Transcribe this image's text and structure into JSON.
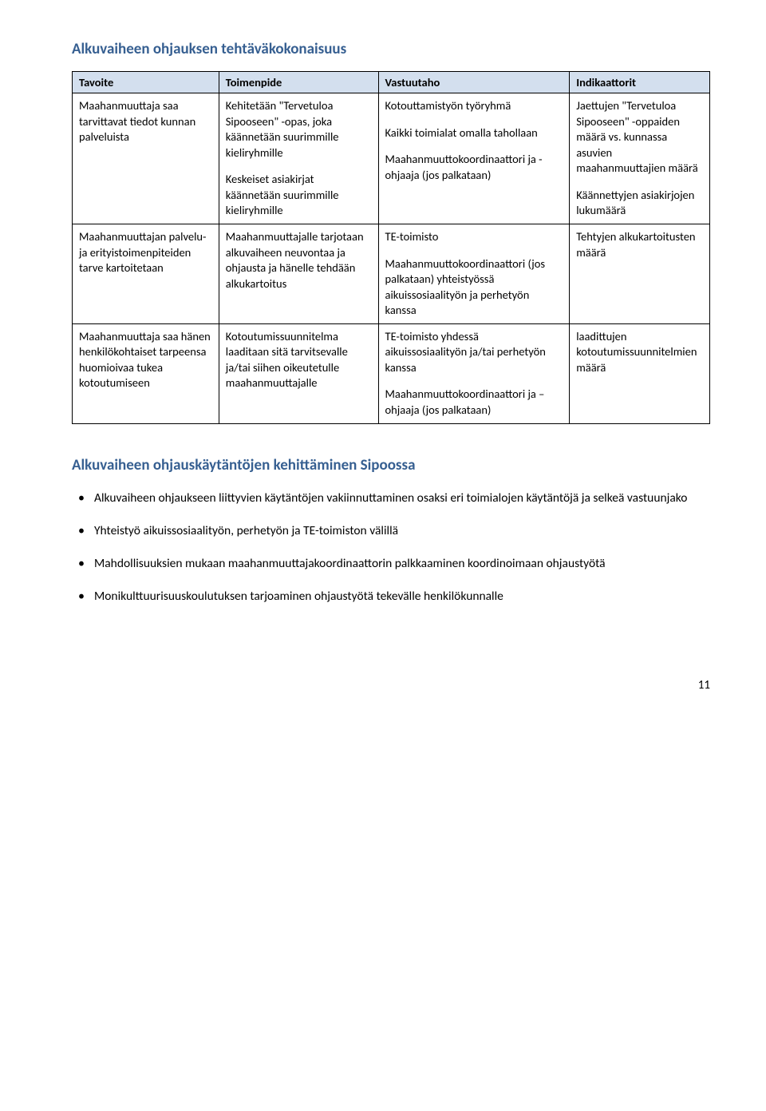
{
  "section_title": "Alkuvaiheen ohjauksen tehtäväkokonaisuus",
  "table": {
    "headers": [
      "Tavoite",
      "Toimenpide",
      "Vastuutaho",
      "Indikaattorit"
    ],
    "rows": [
      {
        "c0": [
          "Maahanmuuttaja saa tarvittavat tiedot kunnan palveluista"
        ],
        "c1": [
          "Kehitetään \"Tervetuloa Sipooseen\" -opas, joka käännetään suurimmille kieliryhmille",
          "Keskeiset asiakirjat käännetään suurimmille kieliryhmille"
        ],
        "c2": [
          "Kotouttamistyön työryhmä",
          "Kaikki toimialat omalla tahollaan",
          "Maahanmuuttokoordinaattori ja -ohjaaja (jos palkataan)"
        ],
        "c3": [
          "Jaettujen \"Tervetuloa Sipooseen\" -oppaiden määrä vs. kunnassa asuvien maahanmuuttajien määrä",
          "Käännettyjen asiakirjojen lukumäärä"
        ]
      },
      {
        "c0": [
          "Maahanmuuttajan palvelu- ja erityistoimenpiteiden tarve kartoitetaan"
        ],
        "c1": [
          "Maahanmuuttajalle tarjotaan alkuvaiheen neuvontaa ja ohjausta ja hänelle tehdään alkukartoitus"
        ],
        "c2": [
          "TE-toimisto",
          "Maahanmuuttokoordinaattori (jos palkataan) yhteistyössä aikuissosiaalityön ja perhetyön kanssa"
        ],
        "c3": [
          "Tehtyjen alkukartoitusten määrä"
        ]
      },
      {
        "c0": [
          "Maahanmuuttaja saa hänen henkilökohtaiset tarpeensa huomioivaa tukea kotoutumiseen"
        ],
        "c1": [
          "Kotoutumissuunnitelma laaditaan sitä tarvitsevalle ja/tai siihen oikeutetulle maahanmuuttajalle"
        ],
        "c2": [
          "TE-toimisto yhdessä aikuissosiaalityön ja/tai perhetyön kanssa",
          "Maahanmuuttokoordinaattori ja –ohjaaja (jos palkataan)"
        ],
        "c3": [
          "laadittujen kotoutumissuunnitelmien määrä"
        ]
      }
    ]
  },
  "subsection_title": "Alkuvaiheen ohjauskäytäntöjen kehittäminen Sipoossa",
  "bullets": [
    "Alkuvaiheen ohjaukseen liittyvien käytäntöjen vakiinnuttaminen osaksi eri toimialojen käytäntöjä ja selkeä vastuunjako",
    "Yhteistyö aikuissosiaalityön, perhetyön ja TE-toimiston välillä",
    "Mahdollisuuksien mukaan maahanmuuttajakoordinaattorin palkkaaminen koordinoimaan ohjaustyötä",
    "Monikulttuurisuuskoulutuksen tarjoaminen ohjaustyötä tekevälle henkilökunnalle"
  ],
  "page_number": "11"
}
